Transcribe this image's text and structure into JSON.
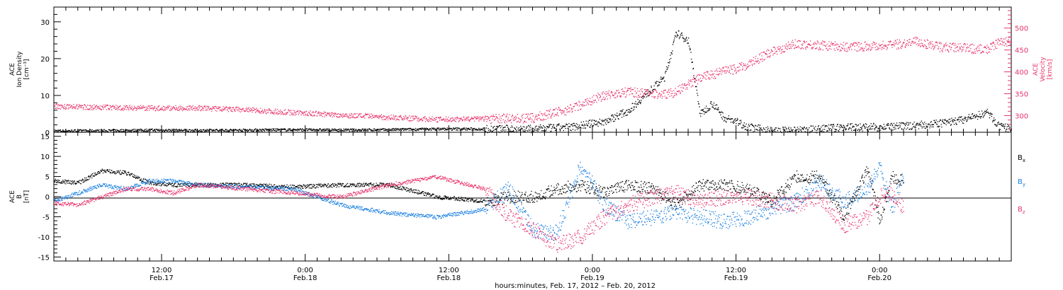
{
  "colors": {
    "black": "#000000",
    "blue": "#1a7fe0",
    "red": "#e8336b"
  },
  "chart_data": [
    {
      "type": "scatter",
      "panel": "top",
      "ylabel_lines": [
        "ACE",
        "Ion Density",
        "[cm⁻³]"
      ],
      "ylim": [
        0,
        34
      ],
      "yticks": [
        0,
        10,
        20,
        30
      ],
      "y2label_lines": [
        "ACE",
        "Velocity",
        "[km/s]"
      ],
      "y2lim": [
        262,
        548
      ],
      "y2ticks": [
        300,
        350,
        400,
        450,
        500
      ],
      "xlim_hours": [
        0,
        80
      ],
      "series": [
        {
          "quantity": "density",
          "color": "black",
          "axis": "left",
          "t_hours": [
            0,
            4,
            8,
            12,
            16,
            20,
            24,
            28,
            32,
            36,
            40,
            43,
            46,
            48,
            50,
            51,
            52,
            53,
            54,
            55,
            56,
            57,
            58,
            60,
            62,
            66,
            70,
            72,
            74,
            76,
            78,
            79,
            80
          ],
          "values": [
            0.5,
            0.5,
            0.7,
            0.6,
            0.7,
            0.8,
            0.7,
            0.8,
            1,
            1,
            1,
            1.5,
            3,
            6,
            12,
            15,
            27,
            25,
            5,
            8,
            4,
            3,
            1.5,
            0.5,
            0.5,
            1.5,
            1.5,
            2,
            2.5,
            3.5,
            5.5,
            1.5,
            1.2
          ]
        },
        {
          "quantity": "velocity",
          "color": "red",
          "axis": "right",
          "t_hours": [
            0,
            4,
            8,
            12,
            16,
            20,
            24,
            28,
            32,
            36,
            40,
            43,
            46,
            48,
            50,
            51,
            52,
            53,
            54,
            55,
            56,
            57,
            58,
            60,
            62,
            66,
            70,
            72,
            74,
            76,
            78,
            79,
            80
          ],
          "values": [
            322,
            320,
            318,
            318,
            314,
            308,
            302,
            297,
            292,
            294,
            295,
            315,
            348,
            355,
            350,
            350,
            355,
            372,
            388,
            395,
            402,
            408,
            418,
            448,
            465,
            458,
            462,
            470,
            458,
            455,
            452,
            468,
            472
          ]
        }
      ]
    },
    {
      "type": "scatter",
      "panel": "bottom",
      "ylabel_lines": [
        "ACE",
        "B",
        "[nT]"
      ],
      "ylim": [
        -16,
        16
      ],
      "yticks": [
        -15,
        -10,
        -5,
        0,
        5,
        10,
        15
      ],
      "xlim_hours": [
        0,
        80
      ],
      "xticks": [
        {
          "hour": 9,
          "line1": "12:00",
          "line2": "Feb.17"
        },
        {
          "hour": 21,
          "line1": "0:00",
          "line2": "Feb.18"
        },
        {
          "hour": 33,
          "line1": "12:00",
          "line2": "Feb.18"
        },
        {
          "hour": 45,
          "line1": "0:00",
          "line2": "Feb.19"
        },
        {
          "hour": 57,
          "line1": "12:00",
          "line2": "Feb.19"
        },
        {
          "hour": 69,
          "line1": "0:00",
          "line2": "Feb.20"
        }
      ],
      "xlabel": "hours:minutes, Feb. 17, 2012 – Feb. 20, 2012",
      "series": [
        {
          "name": "B_x",
          "legend_base": "B",
          "legend_sub": "x",
          "color": "black",
          "t_hours": [
            0,
            2,
            4,
            6,
            8,
            10,
            12,
            16,
            20,
            24,
            28,
            32,
            36,
            38,
            40,
            42,
            44,
            46,
            48,
            50,
            52,
            54,
            56,
            58,
            60,
            62,
            64,
            66,
            68,
            69,
            70,
            71
          ],
          "values": [
            4,
            3.5,
            6.5,
            6,
            3.5,
            3,
            3,
            3,
            2.5,
            3,
            3,
            0,
            -1,
            0,
            0,
            2,
            3,
            1,
            3,
            2,
            -2,
            3,
            3,
            2,
            -1,
            5,
            5,
            -5,
            7,
            -6,
            5,
            4
          ]
        },
        {
          "name": "B_y",
          "legend_base": "B",
          "legend_sub": "y",
          "color": "blue",
          "t_hours": [
            0,
            2,
            4,
            6,
            8,
            10,
            12,
            16,
            20,
            24,
            28,
            32,
            36,
            38,
            40,
            42,
            44,
            46,
            48,
            50,
            52,
            54,
            56,
            58,
            60,
            62,
            64,
            66,
            68,
            69,
            70,
            71
          ],
          "values": [
            -1,
            1,
            3,
            2,
            4,
            4,
            3,
            2.5,
            2,
            -2,
            -4,
            -5,
            -3,
            2,
            -8,
            -9,
            8,
            -2,
            -6,
            -5,
            -4,
            -5,
            -6,
            -5,
            -3,
            -1,
            4,
            -1,
            2,
            8,
            -3,
            5
          ]
        },
        {
          "name": "B_z",
          "legend_base": "B",
          "legend_sub": "z",
          "color": "red",
          "t_hours": [
            0,
            2,
            4,
            6,
            8,
            10,
            12,
            16,
            20,
            24,
            28,
            32,
            36,
            38,
            40,
            42,
            44,
            46,
            48,
            50,
            52,
            54,
            56,
            58,
            60,
            62,
            64,
            66,
            68,
            69,
            70,
            71
          ],
          "values": [
            -1.5,
            -2,
            0,
            2,
            2,
            1,
            3,
            2,
            1,
            0,
            3,
            5,
            2,
            -5,
            -8,
            -12,
            -10,
            -5,
            -2,
            0,
            1,
            -1,
            0,
            0,
            -1,
            -2,
            0,
            -7,
            -5,
            0,
            1,
            -3
          ]
        }
      ]
    }
  ]
}
